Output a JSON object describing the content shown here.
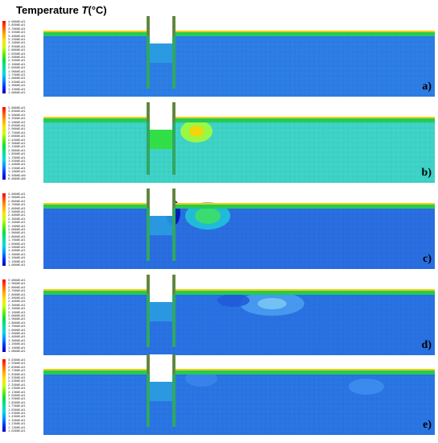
{
  "title": {
    "prefix": "Temperature ",
    "symbol": "T",
    "unit": "(°C)"
  },
  "panels": [
    {
      "label": "a)",
      "ticks": [
        "4.0000E+01",
        "3.8500E+01",
        "3.7000E+01",
        "3.5500E+01",
        "3.4000E+01",
        "3.2500E+01",
        "3.1000E+01",
        "2.9500E+01",
        "2.8000E+01",
        "2.6500E+01",
        "2.5000E+01",
        "2.3500E+01",
        "2.2000E+01",
        "2.0500E+01",
        "1.9000E+01",
        "1.7500E+01",
        "1.6000E+01",
        "1.4500E+01",
        "1.3000E+01",
        "1.1500E+01",
        "1.0000E+01"
      ]
    },
    {
      "label": "b)",
      "ticks": [
        "3.8000E+01",
        "3.6500E+01",
        "3.5000E+01",
        "3.3500E+01",
        "3.2000E+01",
        "3.0500E+01",
        "2.9000E+01",
        "2.7500E+01",
        "2.6000E+01",
        "2.4500E+01",
        "2.3000E+01",
        "2.1500E+01",
        "2.0000E+01",
        "1.8500E+01",
        "1.7000E+01",
        "1.5500E+01",
        "1.4000E+01",
        "1.2500E+01",
        "1.1000E+01",
        "9.5000E+00",
        "8.0000E+00"
      ]
    },
    {
      "label": "c)",
      "ticks": [
        "3.0600E+01",
        "2.9600E+01",
        "2.8600E+01",
        "2.7600E+01",
        "2.6600E+01",
        "2.5600E+01",
        "2.4600E+01",
        "2.3600E+01",
        "2.2600E+01",
        "2.1600E+01",
        "2.0600E+01",
        "1.9600E+01",
        "1.8600E+01",
        "1.7600E+01",
        "1.6600E+01",
        "1.5600E+01",
        "1.4600E+01",
        "1.3600E+01",
        "1.2600E+01",
        "1.1600E+01",
        "1.0600E+01"
      ]
    },
    {
      "label": "d)",
      "ticks": [
        "3.0600E+01",
        "2.9600E+01",
        "2.8600E+01",
        "2.7600E+01",
        "2.6600E+01",
        "2.5600E+01",
        "2.4600E+01",
        "2.3600E+01",
        "2.2600E+01",
        "2.1600E+01",
        "2.0600E+01",
        "1.9600E+01",
        "1.8600E+01",
        "1.7600E+01",
        "1.6600E+01",
        "1.5600E+01",
        "1.4600E+01",
        "1.3600E+01",
        "1.2600E+01",
        "1.1600E+01",
        "1.0600E+01"
      ]
    },
    {
      "label": "e)",
      "ticks": [
        "3.0300E+01",
        "2.9300E+01",
        "2.8300E+01",
        "2.7300E+01",
        "2.6300E+01",
        "2.5300E+01",
        "2.4300E+01",
        "2.3300E+01",
        "2.2300E+01",
        "2.1300E+01",
        "2.0300E+01",
        "1.9300E+01",
        "1.8300E+01",
        "1.7300E+01",
        "1.6300E+01",
        "1.5300E+01",
        "1.4300E+01",
        "1.3300E+01",
        "1.2300E+01",
        "1.1300E+01",
        "1.0300E+01"
      ]
    }
  ],
  "colors": {
    "scale": [
      "#ff0000",
      "#ff5a00",
      "#ffa800",
      "#ffe000",
      "#c8ff00",
      "#60f000",
      "#00e040",
      "#00e0a0",
      "#00d8e0",
      "#0090ff",
      "#0030ff",
      "#0000c0"
    ],
    "panel_fill": [
      "#2d7ee6",
      "#3fd4c8",
      "#2a6fe2",
      "#2a72e4",
      "#2a76e4"
    ],
    "surface": "#22cc55",
    "surface_top": "#ffcc00"
  }
}
